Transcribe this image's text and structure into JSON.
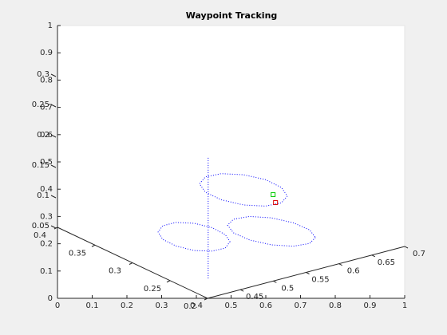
{
  "chart_data": {
    "type": "line",
    "title": "Waypoint Tracking",
    "xlim": [
      0,
      1
    ],
    "xticks": [
      0,
      0.1,
      0.2,
      0.3,
      0.4,
      0.5,
      0.6,
      0.7,
      0.8,
      0.9,
      1
    ],
    "ylim": [
      0,
      1
    ],
    "yticks": [
      0,
      0.1,
      0.2,
      0.3,
      0.4,
      0.5,
      0.6,
      0.7,
      0.8,
      0.9,
      1
    ],
    "x3lim": [
      0.4,
      0.7
    ],
    "x3ticks": [
      0.45,
      0.5,
      0.55,
      0.6,
      0.65,
      0.7
    ],
    "y3lim": [
      0.2,
      0.4
    ],
    "y3ticks": [
      0.2,
      0.25,
      0.3,
      0.35,
      0.4
    ],
    "z3lim": [
      0,
      0.3
    ],
    "z3ticks": [
      0.05,
      0.1,
      0.15,
      0.2,
      0.25,
      0.3
    ],
    "series": [
      {
        "color": "#0000ff",
        "line_style": "dotted",
        "x": [
          0.497,
          0.483,
          0.445,
          0.393,
          0.341,
          0.303,
          0.29,
          0.303,
          0.341,
          0.393,
          0.445,
          0.483,
          0.497
        ],
        "values": [
          0.208,
          0.184,
          0.173,
          0.175,
          0.192,
          0.216,
          0.243,
          0.266,
          0.278,
          0.275,
          0.259,
          0.234,
          0.208
        ]
      },
      {
        "color": "#0000ff",
        "line_style": "dotted",
        "x": [
          0.743,
          0.726,
          0.679,
          0.616,
          0.553,
          0.507,
          0.49,
          0.507,
          0.553,
          0.616,
          0.679,
          0.726,
          0.743
        ],
        "values": [
          0.223,
          0.201,
          0.191,
          0.196,
          0.214,
          0.24,
          0.268,
          0.29,
          0.3,
          0.295,
          0.277,
          0.251,
          0.223
        ]
      },
      {
        "color": "#0000ff",
        "line_style": "dotted",
        "x": [
          0.662,
          0.645,
          0.599,
          0.536,
          0.472,
          0.426,
          0.409,
          0.426,
          0.472,
          0.536,
          0.599,
          0.645,
          0.662
        ],
        "values": [
          0.375,
          0.35,
          0.338,
          0.342,
          0.361,
          0.389,
          0.42,
          0.445,
          0.457,
          0.453,
          0.435,
          0.406,
          0.375
        ]
      },
      {
        "color": "#0000ff",
        "line_style": "dotted",
        "x": [
          0.434,
          0.434
        ],
        "values": [
          0.515,
          0.07
        ]
      },
      {
        "color": "#00cc00",
        "marker": "square",
        "x": [
          0.621
        ],
        "values": [
          0.38
        ]
      },
      {
        "color": "#dd0000",
        "marker": "square",
        "x": [
          0.628
        ],
        "values": [
          0.351
        ]
      }
    ]
  }
}
